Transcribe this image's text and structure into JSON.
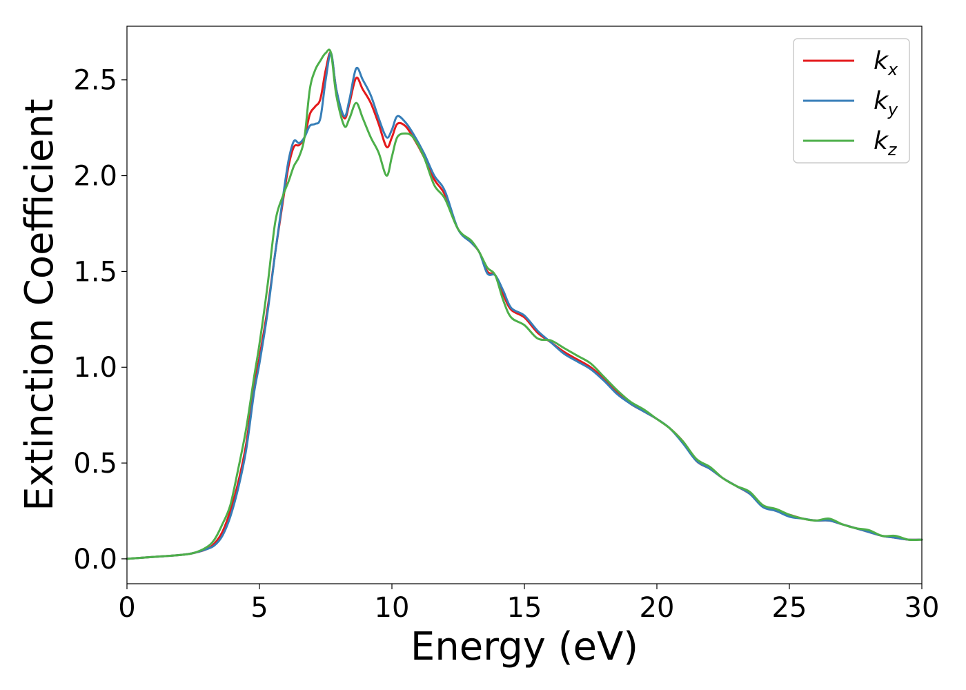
{
  "chart_data": {
    "type": "line",
    "xlabel": "Energy (eV)",
    "ylabel": "Extinction Coefficient",
    "xlim": [
      0,
      30
    ],
    "ylim": [
      -0.13,
      2.78
    ],
    "xticks": [
      0,
      5,
      10,
      15,
      20,
      25,
      30
    ],
    "xtick_labels": [
      "0",
      "5",
      "10",
      "15",
      "20",
      "25",
      "30"
    ],
    "yticks": [
      0.0,
      0.5,
      1.0,
      1.5,
      2.0,
      2.5
    ],
    "ytick_labels": [
      "0.0",
      "0.5",
      "1.0",
      "1.5",
      "2.0",
      "2.5"
    ],
    "grid": false,
    "legend_position": "top-right",
    "series": [
      {
        "name": "k_x",
        "label_base": "k",
        "label_sub": "x",
        "color": "#e41a1c",
        "x": [
          0,
          1,
          2,
          2.5,
          3,
          3.3,
          3.6,
          3.9,
          4.2,
          4.5,
          4.8,
          5.0,
          5.3,
          5.6,
          5.9,
          6.1,
          6.3,
          6.5,
          6.7,
          6.9,
          7.1,
          7.3,
          7.5,
          7.7,
          7.9,
          8.2,
          8.4,
          8.65,
          8.9,
          9.2,
          9.5,
          9.8,
          10.0,
          10.2,
          10.5,
          10.8,
          11.2,
          11.6,
          12.0,
          12.5,
          13.0,
          13.3,
          13.6,
          13.9,
          14.2,
          14.5,
          15.0,
          15.5,
          16.0,
          16.5,
          17.0,
          17.5,
          18.0,
          18.5,
          19.0,
          19.5,
          20.0,
          20.5,
          21.0,
          21.5,
          22.0,
          22.5,
          23.0,
          23.5,
          24.0,
          24.5,
          25.0,
          25.5,
          26.0,
          26.5,
          27.0,
          27.5,
          28.0,
          28.5,
          29.0,
          29.5,
          30.0
        ],
        "y": [
          0.0,
          0.01,
          0.02,
          0.03,
          0.05,
          0.08,
          0.14,
          0.25,
          0.4,
          0.6,
          0.9,
          1.05,
          1.3,
          1.6,
          1.88,
          2.05,
          2.15,
          2.16,
          2.2,
          2.32,
          2.36,
          2.4,
          2.55,
          2.64,
          2.45,
          2.3,
          2.38,
          2.51,
          2.45,
          2.38,
          2.27,
          2.15,
          2.2,
          2.27,
          2.26,
          2.2,
          2.1,
          1.98,
          1.9,
          1.72,
          1.65,
          1.6,
          1.5,
          1.48,
          1.38,
          1.3,
          1.26,
          1.18,
          1.13,
          1.08,
          1.04,
          1.0,
          0.94,
          0.87,
          0.81,
          0.77,
          0.73,
          0.68,
          0.61,
          0.51,
          0.47,
          0.42,
          0.38,
          0.34,
          0.28,
          0.25,
          0.23,
          0.21,
          0.2,
          0.2,
          0.18,
          0.16,
          0.14,
          0.12,
          0.11,
          0.1,
          0.1
        ]
      },
      {
        "name": "k_y",
        "label_base": "k",
        "label_sub": "y",
        "color": "#377eb8",
        "x": [
          0,
          1,
          2,
          2.5,
          3,
          3.3,
          3.6,
          3.9,
          4.2,
          4.5,
          4.8,
          5.0,
          5.3,
          5.6,
          5.9,
          6.1,
          6.3,
          6.5,
          6.7,
          6.9,
          7.1,
          7.3,
          7.5,
          7.7,
          7.9,
          8.2,
          8.4,
          8.65,
          8.9,
          9.2,
          9.5,
          9.8,
          10.0,
          10.2,
          10.5,
          10.8,
          11.2,
          11.6,
          12.0,
          12.5,
          13.0,
          13.3,
          13.6,
          13.9,
          14.2,
          14.5,
          15.0,
          15.5,
          16.0,
          16.5,
          17.0,
          17.5,
          18.0,
          18.5,
          19.0,
          19.5,
          20.0,
          20.5,
          21.0,
          21.5,
          22.0,
          22.5,
          23.0,
          23.5,
          24.0,
          24.5,
          25.0,
          25.5,
          26.0,
          26.5,
          27.0,
          27.5,
          28.0,
          28.5,
          29.0,
          29.5,
          30.0
        ],
        "y": [
          0.0,
          0.01,
          0.02,
          0.03,
          0.05,
          0.07,
          0.12,
          0.22,
          0.37,
          0.57,
          0.87,
          1.02,
          1.28,
          1.6,
          1.9,
          2.08,
          2.18,
          2.17,
          2.2,
          2.26,
          2.27,
          2.3,
          2.5,
          2.64,
          2.45,
          2.31,
          2.4,
          2.56,
          2.5,
          2.42,
          2.3,
          2.2,
          2.24,
          2.31,
          2.28,
          2.22,
          2.12,
          2.0,
          1.92,
          1.72,
          1.65,
          1.6,
          1.49,
          1.48,
          1.4,
          1.31,
          1.27,
          1.19,
          1.13,
          1.07,
          1.03,
          0.99,
          0.93,
          0.86,
          0.81,
          0.77,
          0.73,
          0.68,
          0.6,
          0.51,
          0.47,
          0.42,
          0.38,
          0.34,
          0.27,
          0.25,
          0.22,
          0.21,
          0.2,
          0.2,
          0.18,
          0.16,
          0.14,
          0.12,
          0.11,
          0.1,
          0.1
        ]
      },
      {
        "name": "k_z",
        "label_base": "k",
        "label_sub": "z",
        "color": "#4daf4a",
        "x": [
          0,
          1,
          2,
          2.5,
          3,
          3.3,
          3.6,
          3.9,
          4.2,
          4.5,
          4.8,
          5.0,
          5.3,
          5.6,
          5.9,
          6.1,
          6.3,
          6.5,
          6.7,
          6.9,
          7.1,
          7.3,
          7.5,
          7.7,
          7.9,
          8.2,
          8.4,
          8.65,
          8.9,
          9.2,
          9.5,
          9.8,
          10.0,
          10.2,
          10.5,
          10.8,
          11.2,
          11.6,
          12.0,
          12.5,
          13.0,
          13.3,
          13.6,
          13.9,
          14.2,
          14.5,
          15.0,
          15.5,
          16.0,
          16.5,
          17.0,
          17.5,
          18.0,
          18.5,
          19.0,
          19.5,
          20.0,
          20.5,
          21.0,
          21.5,
          22.0,
          22.5,
          23.0,
          23.5,
          24.0,
          24.5,
          25.0,
          25.5,
          26.0,
          26.5,
          27.0,
          27.5,
          28.0,
          28.5,
          29.0,
          29.5,
          30.0
        ],
        "y": [
          0.0,
          0.01,
          0.02,
          0.03,
          0.06,
          0.1,
          0.18,
          0.28,
          0.47,
          0.68,
          0.95,
          1.12,
          1.42,
          1.76,
          1.9,
          1.97,
          2.05,
          2.1,
          2.2,
          2.45,
          2.55,
          2.6,
          2.64,
          2.64,
          2.42,
          2.26,
          2.3,
          2.38,
          2.3,
          2.2,
          2.12,
          2.0,
          2.1,
          2.2,
          2.22,
          2.2,
          2.1,
          1.95,
          1.88,
          1.72,
          1.66,
          1.6,
          1.52,
          1.48,
          1.35,
          1.26,
          1.22,
          1.15,
          1.14,
          1.1,
          1.06,
          1.02,
          0.95,
          0.88,
          0.82,
          0.78,
          0.73,
          0.68,
          0.61,
          0.52,
          0.48,
          0.42,
          0.38,
          0.35,
          0.28,
          0.26,
          0.23,
          0.21,
          0.2,
          0.21,
          0.18,
          0.16,
          0.15,
          0.12,
          0.12,
          0.1,
          0.1
        ]
      }
    ]
  }
}
